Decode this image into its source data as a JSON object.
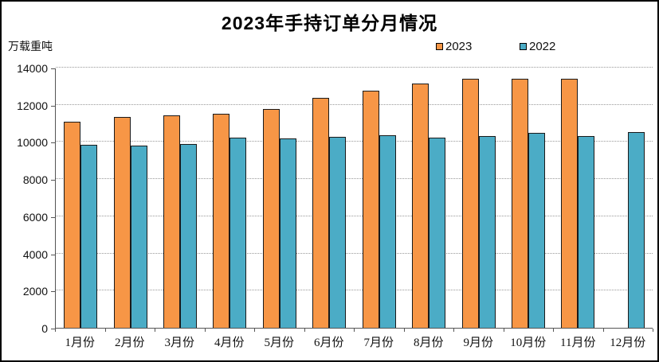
{
  "chart": {
    "title": "2023年手持订单分月情况",
    "unit_label": "万载重吨",
    "legend": [
      {
        "label": "2023",
        "color": "#F79646"
      },
      {
        "label": "2022",
        "color": "#4BACC6"
      }
    ]
  },
  "chart_data": {
    "type": "bar",
    "title": "2023年手持订单分月情况",
    "xlabel": "",
    "ylabel": "万载重吨",
    "categories": [
      "1月份",
      "2月份",
      "3月份",
      "4月份",
      "5月份",
      "6月份",
      "7月份",
      "8月份",
      "9月份",
      "10月份",
      "11月份",
      "12月份"
    ],
    "series": [
      {
        "name": "2023",
        "color": "#F79646",
        "values": [
          11100,
          11350,
          11450,
          11520,
          11790,
          12380,
          12780,
          13150,
          13390,
          13390,
          13410,
          null
        ]
      },
      {
        "name": "2022",
        "color": "#4BACC6",
        "values": [
          9840,
          9800,
          9900,
          10250,
          10210,
          10280,
          10370,
          10220,
          10300,
          10480,
          10340,
          10550
        ]
      }
    ],
    "ylim": [
      0,
      14000
    ],
    "ytick_step": 2000,
    "grid": true,
    "gridline_style": "dotted",
    "legend_position": "top-right",
    "bar_border_color": "#1a1a1a"
  }
}
